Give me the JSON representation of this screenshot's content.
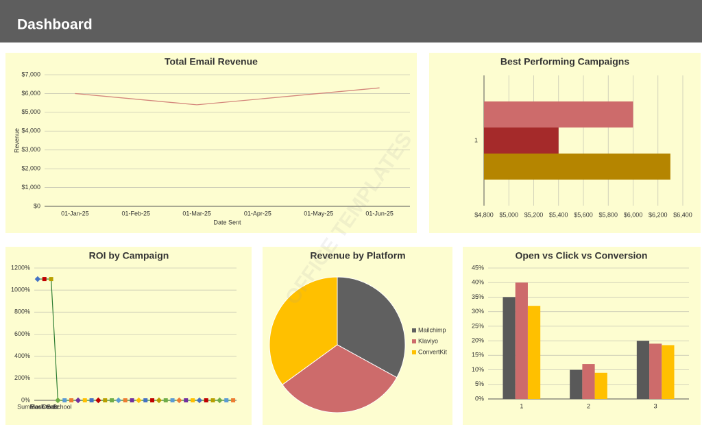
{
  "header": {
    "title": "Dashboard"
  },
  "watermark": "OFFICE TEMPLATES",
  "chart_data": [
    {
      "type": "line",
      "title": "Total Email Revenue",
      "x_label": "Date Sent",
      "y_label": "Revenue",
      "xticks": [
        "01-Jan-25",
        "01-Feb-25",
        "01-Mar-25",
        "01-Apr-25",
        "01-May-25",
        "01-Jun-25"
      ],
      "series": [
        {
          "color": "#d4877c",
          "x": [
            "01-Jan-25",
            "01-Mar-25",
            "01-Jun-25"
          ],
          "values": [
            6000,
            5400,
            6300
          ]
        }
      ],
      "ylim": [
        0,
        7000
      ],
      "yticks": [
        {
          "value": 0,
          "label": "$0"
        },
        {
          "value": 1000,
          "label": "$1,000"
        },
        {
          "value": 2000,
          "label": "$2,000"
        },
        {
          "value": 3000,
          "label": "$3,000"
        },
        {
          "value": 4000,
          "label": "$4,000"
        },
        {
          "value": 5000,
          "label": "$5,000"
        },
        {
          "value": 6000,
          "label": "$6,000"
        },
        {
          "value": 7000,
          "label": "$7,000"
        }
      ],
      "grid": true
    },
    {
      "type": "hbar",
      "title": "Best Performing Campaigns",
      "categories": [
        "1"
      ],
      "series": [
        {
          "color": "#cd6b6b",
          "values": [
            6000
          ]
        },
        {
          "color": "#a52a2a",
          "values": [
            5400
          ]
        },
        {
          "color": "#b58500",
          "values": [
            6300
          ]
        }
      ],
      "xlim": [
        4800,
        6400
      ],
      "xticks": [
        {
          "value": 4800,
          "label": "$4,800"
        },
        {
          "value": 5000,
          "label": "$5,000"
        },
        {
          "value": 5200,
          "label": "$5,200"
        },
        {
          "value": 5400,
          "label": "$5,400"
        },
        {
          "value": 5600,
          "label": "$5,600"
        },
        {
          "value": 5800,
          "label": "$5,800"
        },
        {
          "value": 6000,
          "label": "$6,000"
        },
        {
          "value": 6200,
          "label": "$6,200"
        },
        {
          "value": 6400,
          "label": "$6,400"
        }
      ],
      "grid": true
    },
    {
      "type": "markerline",
      "title": "ROI by Campaign",
      "categories": [
        "Summer Deals",
        "Flash Sale",
        "Back to School",
        null,
        null,
        null,
        null,
        null,
        null,
        null,
        null,
        null,
        null,
        null,
        null,
        null,
        null,
        null,
        null,
        null,
        null,
        null,
        null,
        null,
        null,
        null,
        null,
        null,
        null,
        null
      ],
      "series": [
        {
          "color": "#2e7d32",
          "values": [
            1100,
            1100,
            1100,
            0,
            0,
            0,
            0,
            0,
            0,
            0,
            0,
            0,
            0,
            0,
            0,
            0,
            0,
            0,
            0,
            0,
            0,
            0,
            0,
            0,
            0,
            0,
            0,
            0,
            0,
            0
          ]
        }
      ],
      "marker_colors": [
        "#4472c4",
        "#c00000",
        "#b8a000",
        "#70ad47",
        "#5b9bd5",
        "#ed7d31",
        "#7030a0",
        "#ffc000"
      ],
      "ylim": [
        0,
        1200
      ],
      "yticks": [
        {
          "value": 0,
          "label": "0%"
        },
        {
          "value": 200,
          "label": "200%"
        },
        {
          "value": 400,
          "label": "400%"
        },
        {
          "value": 600,
          "label": "600%"
        },
        {
          "value": 800,
          "label": "800%"
        },
        {
          "value": 1000,
          "label": "1000%"
        },
        {
          "value": 1200,
          "label": "1200%"
        }
      ],
      "grid": true
    },
    {
      "type": "pie",
      "title": "Revenue by Platform",
      "categories": [
        "Mailchimp",
        "Klaviyo",
        "ConvertKit"
      ],
      "values": [
        33,
        32,
        35
      ],
      "colors": [
        "#606060",
        "#cd6b6b",
        "#ffc000"
      ],
      "legend": "right"
    },
    {
      "type": "groupbar",
      "title": "Open vs Click vs Conversion",
      "categories": [
        "1",
        "2",
        "3"
      ],
      "series": [
        {
          "color": "#595959",
          "values": [
            35,
            10,
            20
          ]
        },
        {
          "color": "#cd6b6b",
          "values": [
            40,
            12,
            19
          ]
        },
        {
          "color": "#ffc000",
          "values": [
            32,
            9,
            18.5
          ]
        }
      ],
      "ylim": [
        0,
        45
      ],
      "yticks": [
        {
          "value": 0,
          "label": "0%"
        },
        {
          "value": 5,
          "label": "5%"
        },
        {
          "value": 10,
          "label": "10%"
        },
        {
          "value": 15,
          "label": "15%"
        },
        {
          "value": 20,
          "label": "20%"
        },
        {
          "value": 25,
          "label": "25%"
        },
        {
          "value": 30,
          "label": "30%"
        },
        {
          "value": 35,
          "label": "35%"
        },
        {
          "value": 40,
          "label": "40%"
        },
        {
          "value": 45,
          "label": "45%"
        }
      ],
      "grid": true
    }
  ]
}
